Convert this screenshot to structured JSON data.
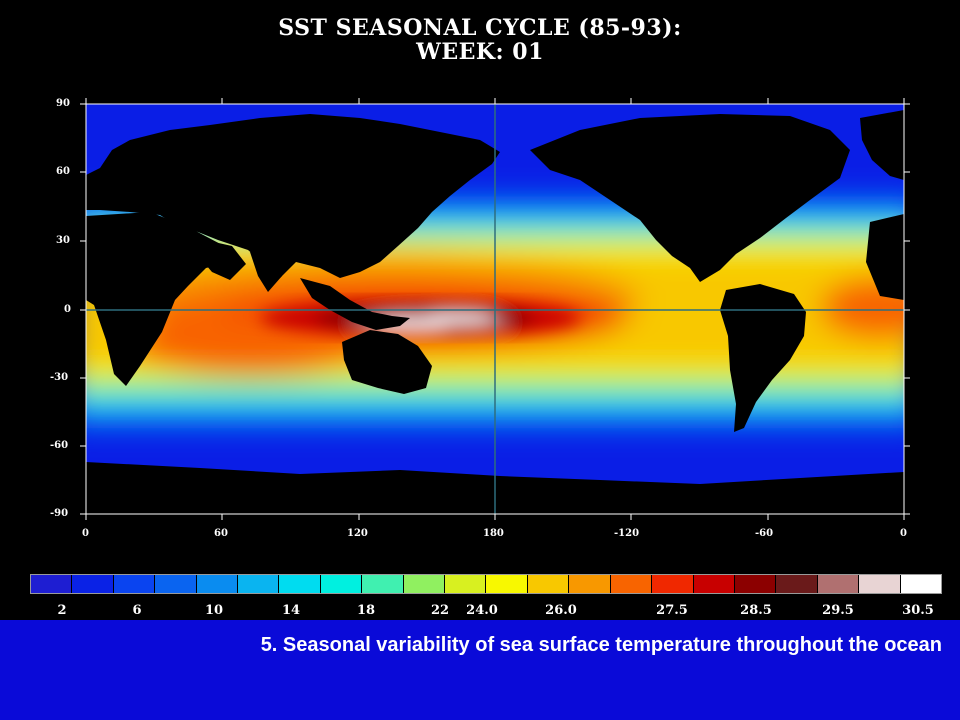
{
  "title": {
    "line1": "SST SEASONAL CYCLE (85-93):",
    "line2": "WEEK:  01"
  },
  "map": {
    "lat_labels": [
      "90",
      "60",
      "30",
      "0",
      "-30",
      "-60",
      "-90"
    ],
    "lon_labels": [
      "0",
      "60",
      "120",
      "180",
      "-120",
      "-60",
      "0"
    ],
    "land_color": "#000000",
    "background_color": "#000000"
  },
  "colorbar": {
    "colors": [
      "#1e1ed2",
      "#0a22e6",
      "#0a44f0",
      "#0a64f0",
      "#0a8cf0",
      "#0ab4f0",
      "#00dcf0",
      "#00f0e0",
      "#40f0b0",
      "#90f060",
      "#d8f020",
      "#f8f800",
      "#f8c800",
      "#f89800",
      "#f86400",
      "#f02800",
      "#c80000",
      "#8c0000",
      "#6a1a1a",
      "#b07070",
      "#e8d4d4",
      "#ffffff"
    ],
    "labels": [
      "2",
      "6",
      "10",
      "14",
      "18",
      "22",
      "24.0",
      "26.0",
      "27.5",
      "28.5",
      "29.5",
      "30.5"
    ]
  },
  "caption": "5. Seasonal variability of sea surface temperature throughout the ocean"
}
